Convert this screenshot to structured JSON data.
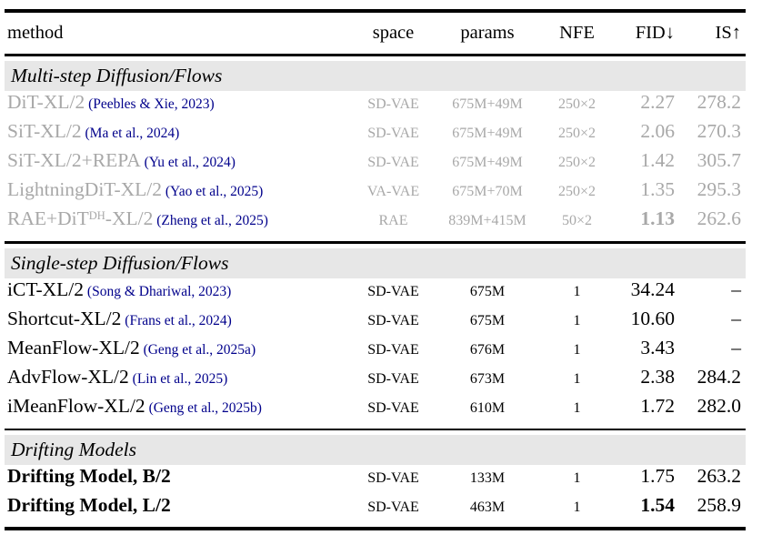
{
  "table": {
    "colors": {
      "muted_text": "#a8a8a8",
      "citation_link": "#00008b",
      "section_band_bg": "#e7e7e7",
      "text": "#000000",
      "rule": "#000000"
    },
    "columns": [
      {
        "key": "method",
        "label": "method"
      },
      {
        "key": "space",
        "label": "space"
      },
      {
        "key": "params",
        "label": "params"
      },
      {
        "key": "nfe",
        "label": "NFE"
      },
      {
        "key": "fid",
        "label": "FID↓"
      },
      {
        "key": "is",
        "label": "IS↑"
      }
    ],
    "sections": [
      {
        "title": "Multi-step Diffusion/Flows",
        "muted": true,
        "rows": [
          {
            "method": "DiT-XL/2",
            "cite": "(Peebles & Xie, 2023)",
            "space": "SD-VAE",
            "params": "675M+49M",
            "nfe": "250×2",
            "fid": "2.27",
            "is": "278.2"
          },
          {
            "method": "SiT-XL/2",
            "cite": "(Ma et al., 2024)",
            "space": "SD-VAE",
            "params": "675M+49M",
            "nfe": "250×2",
            "fid": "2.06",
            "is": "270.3"
          },
          {
            "method": "SiT-XL/2+REPA",
            "cite": "(Yu et al., 2024)",
            "space": "SD-VAE",
            "params": "675M+49M",
            "nfe": "250×2",
            "fid": "1.42",
            "is": "305.7"
          },
          {
            "method": "LightningDiT-XL/2",
            "cite": "(Yao et al., 2025)",
            "space": "VA-VAE",
            "params": "675M+70M",
            "nfe": "250×2",
            "fid": "1.35",
            "is": "295.3"
          },
          {
            "method": "RAE+DiT",
            "method_sup": "DH",
            "method_post": "-XL/2",
            "cite": "(Zheng et al., 2025)",
            "space": "RAE",
            "params": "839M+415M",
            "nfe": "50×2",
            "fid": "1.13",
            "fid_bold": true,
            "is": "262.6"
          }
        ]
      },
      {
        "title": "Single-step Diffusion/Flows",
        "muted": false,
        "rows": [
          {
            "method": "iCT-XL/2",
            "cite": "(Song & Dhariwal, 2023)",
            "space": "SD-VAE",
            "params": "675M",
            "nfe": "1",
            "fid": "34.24",
            "is": "–"
          },
          {
            "method": "Shortcut-XL/2",
            "cite": "(Frans et al., 2024)",
            "space": "SD-VAE",
            "params": "675M",
            "nfe": "1",
            "fid": "10.60",
            "is": "–"
          },
          {
            "method": "MeanFlow-XL/2",
            "cite": "(Geng et al., 2025a)",
            "space": "SD-VAE",
            "params": "676M",
            "nfe": "1",
            "fid": "3.43",
            "is": "–"
          },
          {
            "method": "AdvFlow-XL/2",
            "cite": "(Lin et al., 2025)",
            "space": "SD-VAE",
            "params": "673M",
            "nfe": "1",
            "fid": "2.38",
            "is": "284.2"
          },
          {
            "method": "iMeanFlow-XL/2",
            "cite": "(Geng et al., 2025b)",
            "space": "SD-VAE",
            "params": "610M",
            "nfe": "1",
            "fid": "1.72",
            "is": "282.0"
          }
        ]
      },
      {
        "title": "Drifting Models",
        "muted": false,
        "rows": [
          {
            "method": "Drifting Model, B/2",
            "method_bold": true,
            "space": "SD-VAE",
            "params": "133M",
            "nfe": "1",
            "fid": "1.75",
            "is": "263.2"
          },
          {
            "method": "Drifting Model, L/2",
            "method_bold": true,
            "space": "SD-VAE",
            "params": "463M",
            "nfe": "1",
            "fid": "1.54",
            "fid_bold": true,
            "is": "258.9"
          }
        ]
      }
    ]
  }
}
